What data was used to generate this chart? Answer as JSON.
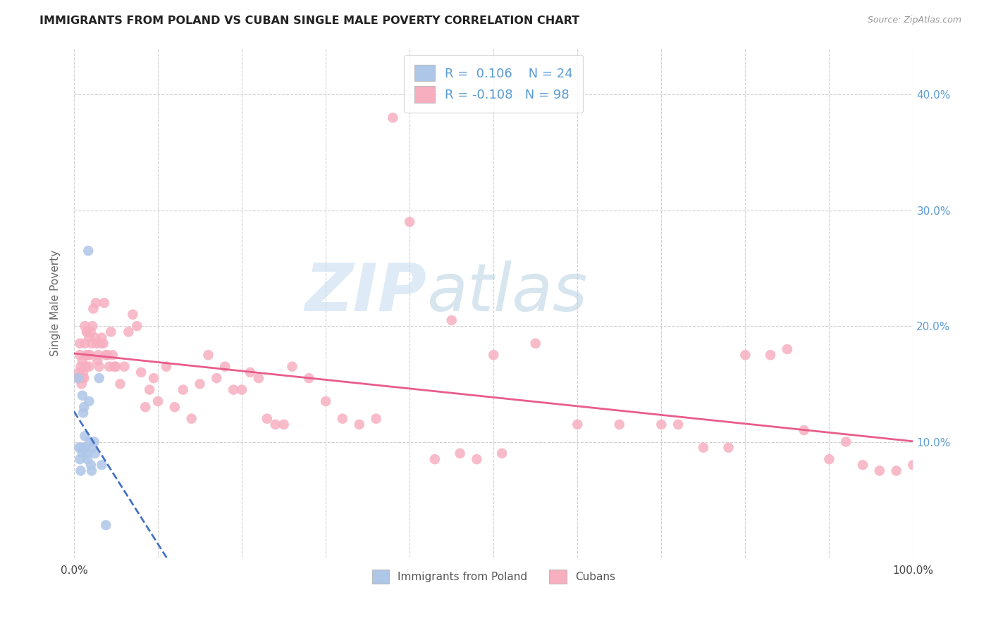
{
  "title": "IMMIGRANTS FROM POLAND VS CUBAN SINGLE MALE POVERTY CORRELATION CHART",
  "source": "Source: ZipAtlas.com",
  "ylabel": "Single Male Poverty",
  "yticks": [
    0.1,
    0.2,
    0.3,
    0.4
  ],
  "ytick_labels": [
    "10.0%",
    "20.0%",
    "30.0%",
    "40.0%"
  ],
  "legend_label1": "Immigrants from Poland",
  "legend_label2": "Cubans",
  "r1": 0.106,
  "n1": 24,
  "r2": -0.108,
  "n2": 98,
  "color_blue": "#aec6e8",
  "color_pink": "#f7afc0",
  "line_blue": "#4472c4",
  "line_pink": "#e85d8a",
  "watermark_zip": "ZIP",
  "watermark_atlas": "atlas",
  "poland_x": [
    0.005,
    0.006,
    0.007,
    0.008,
    0.009,
    0.01,
    0.01,
    0.011,
    0.012,
    0.013,
    0.014,
    0.015,
    0.016,
    0.017,
    0.018,
    0.019,
    0.02,
    0.021,
    0.022,
    0.024,
    0.025,
    0.03,
    0.033,
    0.038
  ],
  "poland_y": [
    0.155,
    0.095,
    0.085,
    0.075,
    0.095,
    0.09,
    0.14,
    0.125,
    0.13,
    0.105,
    0.095,
    0.09,
    0.085,
    0.265,
    0.135,
    0.1,
    0.08,
    0.075,
    0.095,
    0.1,
    0.09,
    0.155,
    0.08,
    0.028
  ],
  "cubans_x": [
    0.005,
    0.006,
    0.007,
    0.007,
    0.008,
    0.008,
    0.009,
    0.01,
    0.01,
    0.011,
    0.012,
    0.013,
    0.013,
    0.014,
    0.015,
    0.015,
    0.016,
    0.017,
    0.018,
    0.018,
    0.019,
    0.02,
    0.021,
    0.022,
    0.023,
    0.025,
    0.026,
    0.027,
    0.028,
    0.029,
    0.03,
    0.032,
    0.033,
    0.035,
    0.036,
    0.038,
    0.04,
    0.042,
    0.044,
    0.046,
    0.048,
    0.05,
    0.055,
    0.06,
    0.065,
    0.07,
    0.075,
    0.08,
    0.085,
    0.09,
    0.095,
    0.1,
    0.11,
    0.12,
    0.13,
    0.14,
    0.15,
    0.16,
    0.17,
    0.18,
    0.19,
    0.2,
    0.21,
    0.22,
    0.23,
    0.24,
    0.25,
    0.26,
    0.28,
    0.3,
    0.32,
    0.34,
    0.36,
    0.38,
    0.4,
    0.45,
    0.5,
    0.55,
    0.6,
    0.65,
    0.7,
    0.72,
    0.75,
    0.78,
    0.8,
    0.83,
    0.85,
    0.87,
    0.9,
    0.92,
    0.94,
    0.96,
    0.98,
    1.0,
    0.43,
    0.46,
    0.48,
    0.51
  ],
  "cubans_y": [
    0.155,
    0.16,
    0.175,
    0.185,
    0.155,
    0.165,
    0.15,
    0.17,
    0.155,
    0.16,
    0.155,
    0.2,
    0.185,
    0.165,
    0.175,
    0.195,
    0.195,
    0.175,
    0.19,
    0.165,
    0.175,
    0.195,
    0.185,
    0.2,
    0.215,
    0.19,
    0.22,
    0.185,
    0.17,
    0.175,
    0.165,
    0.185,
    0.19,
    0.185,
    0.22,
    0.175,
    0.175,
    0.165,
    0.195,
    0.175,
    0.165,
    0.165,
    0.15,
    0.165,
    0.195,
    0.21,
    0.2,
    0.16,
    0.13,
    0.145,
    0.155,
    0.135,
    0.165,
    0.13,
    0.145,
    0.12,
    0.15,
    0.175,
    0.155,
    0.165,
    0.145,
    0.145,
    0.16,
    0.155,
    0.12,
    0.115,
    0.115,
    0.165,
    0.155,
    0.135,
    0.12,
    0.115,
    0.12,
    0.38,
    0.29,
    0.205,
    0.175,
    0.185,
    0.115,
    0.115,
    0.115,
    0.115,
    0.095,
    0.095,
    0.175,
    0.175,
    0.18,
    0.11,
    0.085,
    0.1,
    0.08,
    0.075,
    0.075,
    0.08,
    0.085,
    0.09,
    0.085,
    0.09
  ]
}
